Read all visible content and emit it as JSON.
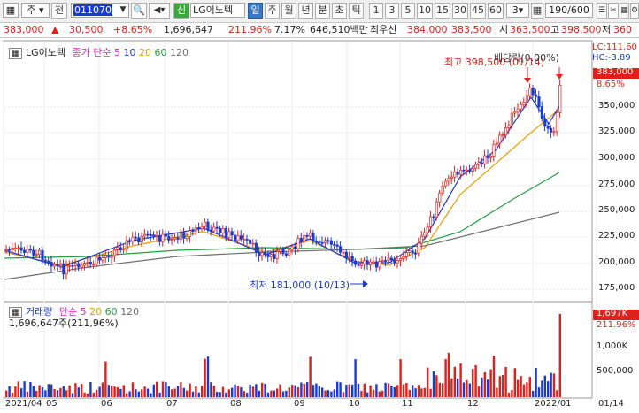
{
  "toolbar": {
    "menu_icon": "grid-menu-icon",
    "period_select": "주",
    "prev_label": "전",
    "code_value": "011070",
    "search_icon": "search-icon",
    "sound_icon": "speaker-icon",
    "new_badge": "신",
    "stock_name": "LG이노텍",
    "interval_buttons": [
      "일",
      "주",
      "월",
      "년",
      "분",
      "초",
      "틱"
    ],
    "selected_interval": "일",
    "minute_buttons": [
      "1",
      "3",
      "5",
      "10",
      "15",
      "30",
      "45",
      "60"
    ],
    "custom_minute": "3",
    "count_value": "190/600",
    "right_icons": [
      "stack-icon",
      "scissors-icon",
      "grid-icon",
      "settings-icon"
    ]
  },
  "quote": {
    "price": "383,000",
    "change_arrow": "▲",
    "change": "30,500",
    "change_pct": "+8.65%",
    "volume": "1,696,647",
    "volume_ratio": "211.96%",
    "turnover": "7.17%",
    "amount": "646,510백만",
    "priority_label": "최우선",
    "ask": "384,000",
    "bid": "383,500",
    "open_label": "시",
    "open": "363,500",
    "high_label": "고",
    "high": "398,500",
    "low_label": "저",
    "low": "360"
  },
  "price_panel": {
    "legend_name": "LG이노텍",
    "ma_label": "종가 단순",
    "ma_periods": [
      "5",
      "10",
      "20",
      "60",
      "120"
    ],
    "lc_label": "LC:111,60",
    "hc_label": "HC:-3.89",
    "current_price_tag": "383,000",
    "current_pct_tag": "8.65%",
    "y_ticks": [
      "350,000",
      "325,000",
      "300,000",
      "275,000",
      "250,000",
      "225,000",
      "200,000",
      "175,000"
    ],
    "high_annotation": "최고 398,500 (01/14)",
    "dividend_annotation": "배당락(0.00%)",
    "low_annotation": "최저 181,000 (10/13)"
  },
  "volume_panel": {
    "title": "거래량",
    "ma_label": "단순",
    "ma_periods": [
      "5",
      "20",
      "60",
      "120"
    ],
    "value_line": "1,696,647주(211,96%)",
    "current_tag": "1,697K",
    "current_pct": "211.96%",
    "y_ticks": [
      "1,000K",
      "500,000"
    ]
  },
  "x_axis": [
    "2021/04",
    "05",
    "06",
    "07",
    "08",
    "09",
    "10",
    "11",
    "12",
    "2022/01",
    "01/14"
  ],
  "colors": {
    "up": "#e0201a",
    "down": "#1a3ad0",
    "ma5": "#e020c0",
    "ma10": "#1a3ad0",
    "ma20": "#e8a000",
    "ma60": "#20a040",
    "ma120": "#707070"
  }
}
